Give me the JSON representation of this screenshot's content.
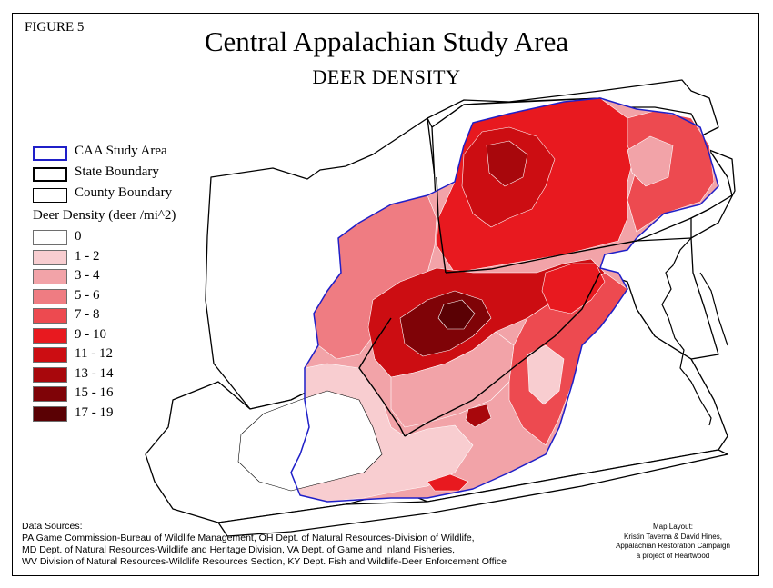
{
  "figure_label": "FIGURE 5",
  "title": "Central Appalachian Study Area",
  "subtitle": "DEER DENSITY",
  "legend": {
    "symbols": [
      {
        "label": "CAA Study Area",
        "color": "#1f1fc8"
      },
      {
        "label": "State Boundary",
        "color": "#000000"
      },
      {
        "label": "County Boundary",
        "color": "#000000"
      }
    ],
    "density_title": "Deer Density (deer /mi^2)",
    "classes": [
      {
        "label": "0",
        "color": "#ffffff"
      },
      {
        "label": "1 - 2",
        "color": "#f8cdd0"
      },
      {
        "label": "3 - 4",
        "color": "#f2a3a8"
      },
      {
        "label": "5 - 6",
        "color": "#ef7c82"
      },
      {
        "label": "7 - 8",
        "color": "#ed4a50"
      },
      {
        "label": "9 - 10",
        "color": "#e8191f"
      },
      {
        "label": "11 - 12",
        "color": "#cc0d12"
      },
      {
        "label": "13 - 14",
        "color": "#a8070c"
      },
      {
        "label": "15 - 16",
        "color": "#7f0307"
      },
      {
        "label": "17 - 19",
        "color": "#5a0104"
      }
    ]
  },
  "data_sources": {
    "heading": "Data Sources:",
    "lines": [
      "PA Game Commission-Bureau of Wildlife Management, OH Dept. of Natural Resources-Division of Wildlife,",
      "MD Dept. of Natural Resources-Wildlife and Heritage Division, VA Dept. of Game and Inland Fisheries,",
      "WV Division of Natural Resources-Wildlife Resources Section,  KY Dept. Fish and Wildlife-Deer Enforcement Office"
    ]
  },
  "layout_credit": {
    "lines": [
      "Map Layout:",
      "Kristin Taverna &  David Hines,",
      "Appalachian Restoration Campaign",
      "a project of Heartwood"
    ]
  }
}
